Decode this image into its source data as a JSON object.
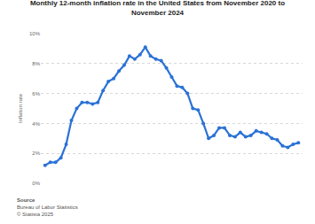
{
  "chart_data": {
    "type": "line",
    "title": "Monthly 12-month inflation rate in the United States from November 2020 to November 2024",
    "y_label": "Inflation rate",
    "source_label": "Source",
    "source": "Bureau of Labor Statistics",
    "copyright": "© Statista 2025",
    "categories": [
      null,
      null,
      null,
      null,
      null,
      null,
      null,
      null,
      null,
      null,
      null,
      null,
      null,
      null,
      null,
      null,
      null,
      null,
      null,
      null,
      null,
      null,
      null,
      null,
      null,
      null,
      null,
      null,
      null,
      null,
      null,
      null,
      null,
      null,
      null,
      null,
      null,
      null,
      null,
      null,
      null,
      null,
      null,
      null,
      null,
      null,
      null,
      null,
      null
    ],
    "values": [
      1.2,
      1.4,
      1.4,
      1.7,
      2.6,
      4.2,
      5.0,
      5.4,
      5.4,
      5.3,
      5.4,
      6.2,
      6.8,
      7.0,
      7.5,
      7.9,
      8.5,
      8.3,
      8.6,
      9.1,
      8.5,
      8.3,
      8.2,
      7.7,
      7.1,
      6.5,
      6.4,
      6.0,
      5.0,
      4.9,
      4.0,
      3.0,
      3.2,
      3.7,
      3.7,
      3.2,
      3.1,
      3.4,
      3.1,
      3.2,
      3.5,
      3.4,
      3.3,
      3.0,
      2.9,
      2.5,
      2.4,
      2.6,
      2.7
    ],
    "color": "#2b72d6",
    "marker": "circle",
    "ylim": [
      0,
      10
    ],
    "yticks": [
      {
        "value": 0,
        "label": "0%"
      },
      {
        "value": 2,
        "label": "2%"
      },
      {
        "value": 4,
        "label": "4%"
      },
      {
        "value": 6,
        "label": "6%"
      },
      {
        "value": 8,
        "label": "8%"
      },
      {
        "value": 10,
        "label": "10%"
      }
    ],
    "grid": true,
    "tick_labels": "y"
  }
}
